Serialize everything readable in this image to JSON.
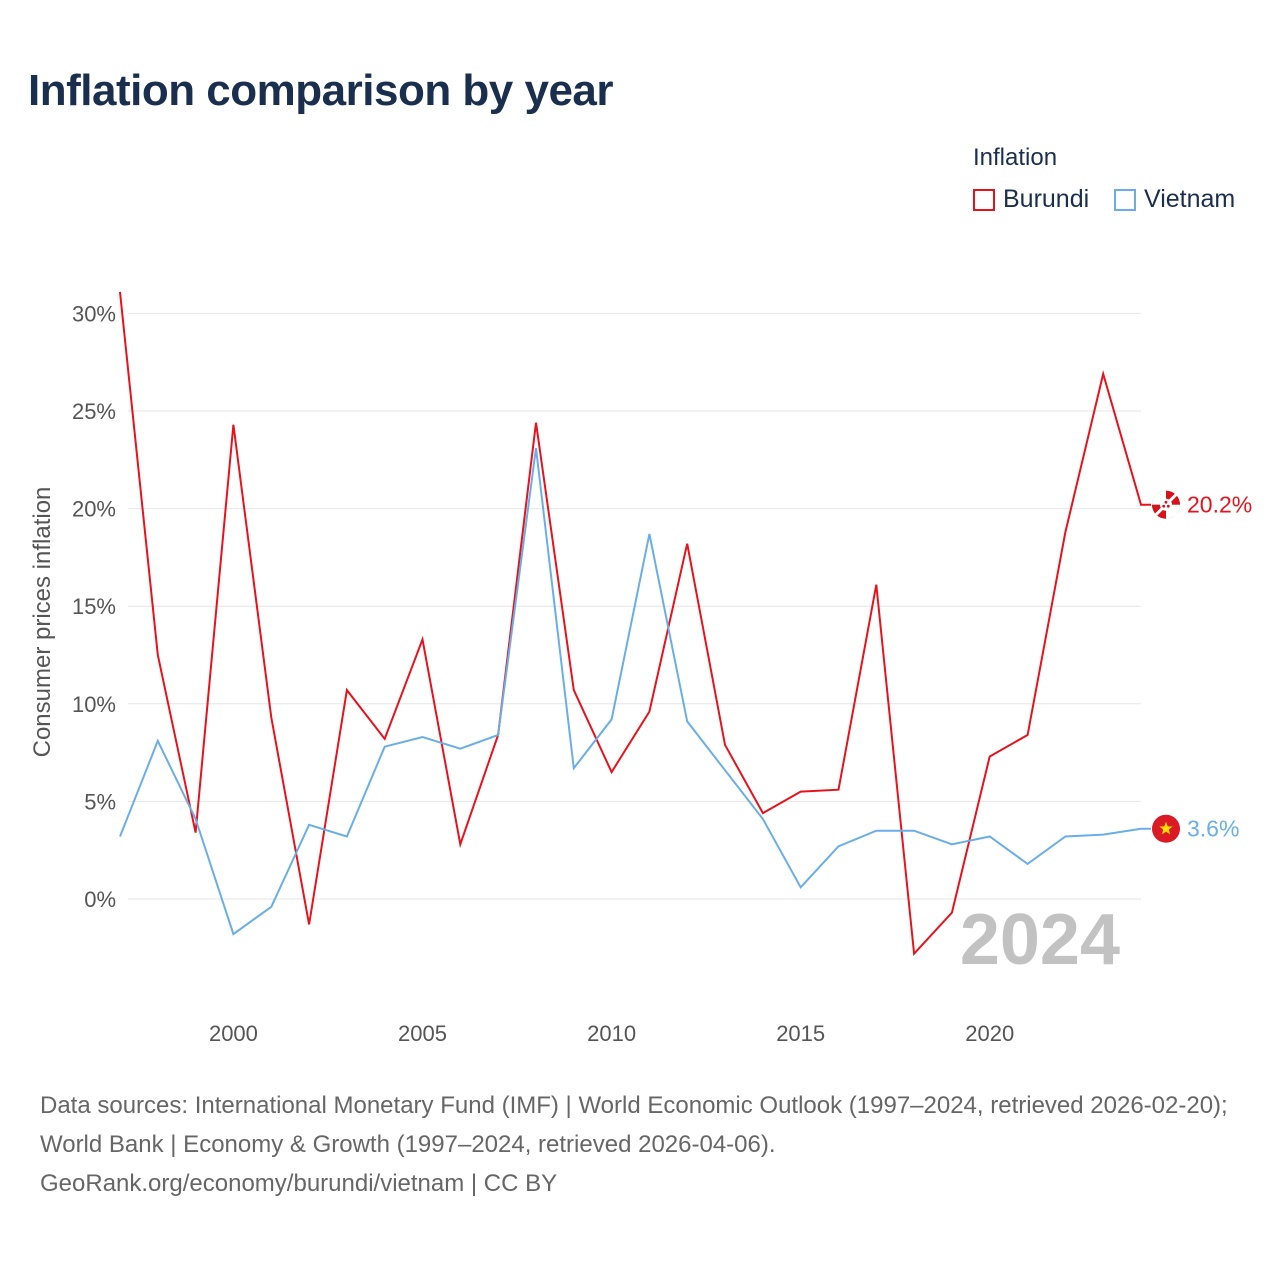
{
  "title": "Inflation comparison by year",
  "legend": {
    "title": "Inflation",
    "items": [
      {
        "label": "Burundi",
        "color": "#e8121c"
      },
      {
        "label": "Vietnam",
        "color": "#6aaee8"
      }
    ]
  },
  "chart_data": {
    "type": "line",
    "title": "Inflation comparison by year",
    "ylabel": "Consumer prices inflation",
    "xlabel": "",
    "x": [
      1997,
      1998,
      1999,
      2000,
      2001,
      2002,
      2003,
      2004,
      2005,
      2006,
      2007,
      2008,
      2009,
      2010,
      2011,
      2012,
      2013,
      2014,
      2015,
      2016,
      2017,
      2018,
      2019,
      2020,
      2021,
      2022,
      2023,
      2024
    ],
    "xlim": [
      1997,
      2024
    ],
    "ylim": [
      -5.5,
      32
    ],
    "xticks": [
      2000,
      2005,
      2010,
      2015,
      2020
    ],
    "xtick_labels": [
      "2000",
      "2005",
      "2010",
      "2015",
      "2020"
    ],
    "yticks": [
      0,
      5,
      10,
      15,
      20,
      25,
      30
    ],
    "ytick_labels": [
      "0%",
      "5%",
      "10%",
      "15%",
      "20%",
      "25%",
      "30%"
    ],
    "grid": true,
    "legend_position": "top-right",
    "current_year_label": "2024",
    "series": [
      {
        "name": "Burundi",
        "color": "#e8121c",
        "end_label": "20.2%",
        "values": [
          31.1,
          12.5,
          3.4,
          24.3,
          9.3,
          -1.3,
          10.7,
          8.2,
          13.3,
          2.8,
          8.4,
          24.4,
          10.7,
          6.5,
          9.6,
          18.2,
          7.9,
          4.4,
          5.5,
          5.6,
          16.1,
          -2.8,
          -0.7,
          7.3,
          8.4,
          18.8,
          26.9,
          20.2
        ]
      },
      {
        "name": "Vietnam",
        "color": "#6aaee8",
        "end_label": "3.6%",
        "values": [
          3.2,
          8.1,
          4.1,
          -1.8,
          -0.4,
          3.8,
          3.2,
          7.8,
          8.3,
          7.7,
          8.4,
          23.1,
          6.7,
          9.2,
          18.7,
          9.1,
          6.6,
          4.1,
          0.6,
          2.7,
          3.5,
          3.5,
          2.8,
          3.2,
          1.8,
          3.2,
          3.3,
          3.6
        ]
      }
    ]
  },
  "footer": {
    "line1": "Data sources: International Monetary Fund (IMF) | World Economic Outlook (1997–2024, retrieved 2026-02-20); World Bank | Economy & Growth (1997–2024, retrieved 2026-04-06).",
    "line2": "GeoRank.org/economy/burundi/vietnam | CC BY"
  }
}
